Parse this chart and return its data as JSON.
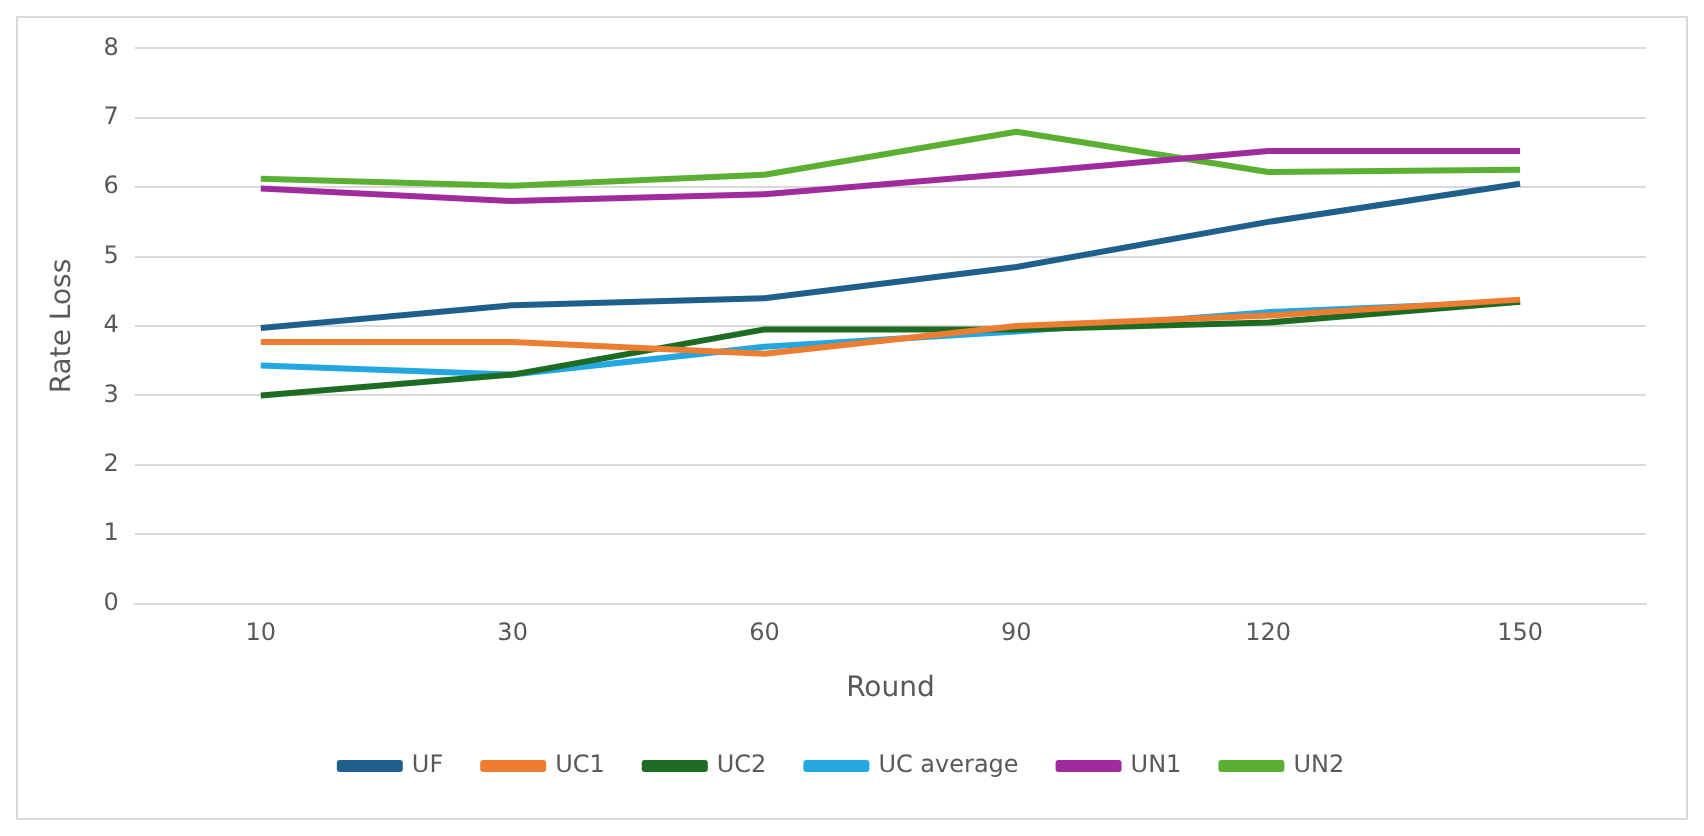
{
  "chart_data": {
    "type": "line",
    "xlabel": "Round",
    "ylabel": "Rate Loss",
    "categories": [
      "10",
      "30",
      "60",
      "90",
      "120",
      "150"
    ],
    "series": [
      {
        "name": "UF",
        "color": "#1f5f8b",
        "values": [
          3.97,
          4.3,
          4.4,
          4.85,
          5.5,
          6.05
        ]
      },
      {
        "name": "UC1",
        "color": "#ed7d31",
        "values": [
          3.77,
          3.77,
          3.6,
          4.0,
          4.15,
          4.38
        ]
      },
      {
        "name": "UC2",
        "color": "#1e6b24",
        "values": [
          3.0,
          3.3,
          3.95,
          3.95,
          4.05,
          4.35
        ]
      },
      {
        "name": "UC average",
        "color": "#22a7e0",
        "values": [
          3.43,
          3.3,
          3.7,
          3.92,
          4.2,
          4.35
        ]
      },
      {
        "name": "UN1",
        "color": "#a02b9c",
        "values": [
          5.98,
          5.8,
          5.9,
          6.2,
          6.52,
          6.52
        ]
      },
      {
        "name": "UN2",
        "color": "#5bb033",
        "values": [
          6.12,
          6.02,
          6.18,
          6.8,
          6.22,
          6.25
        ]
      }
    ],
    "ylim": [
      0,
      8
    ],
    "yticks": [
      0,
      1,
      2,
      3,
      4,
      5,
      6,
      7,
      8
    ],
    "grid": "y",
    "legend": "bottom",
    "marker": "none",
    "line_style": "solid"
  }
}
